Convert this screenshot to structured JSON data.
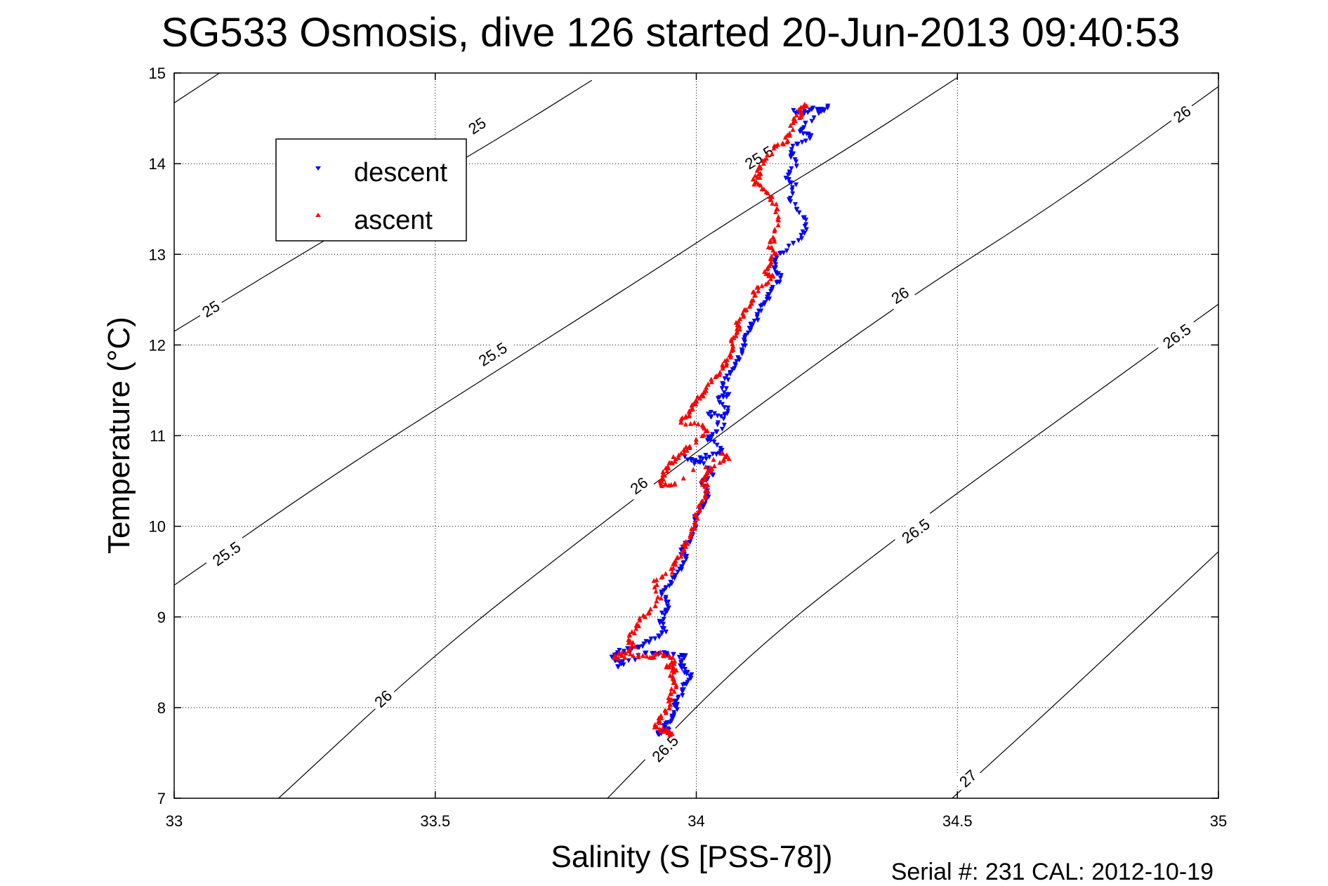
{
  "chart_data": {
    "type": "scatter",
    "title": "SG533 Osmosis, dive 126 started 20-Jun-2013 09:40:53",
    "xlabel": "Salinity (S [PSS-78])",
    "ylabel": "Temperature (°C)",
    "xlim": [
      33,
      35
    ],
    "ylim": [
      7,
      15
    ],
    "x_ticks": [
      "33",
      "33.5",
      "34",
      "34.5",
      "35"
    ],
    "y_ticks": [
      "7",
      "8",
      "9",
      "10",
      "11",
      "12",
      "13",
      "14",
      "15"
    ],
    "grid": true,
    "legend_position": "top-left",
    "footnote": "Serial #: 231  CAL: 2012-10-19",
    "colors": {
      "descent": "#0000ff",
      "ascent": "#ff0000",
      "contour": "#000000"
    },
    "contours": [
      {
        "level": "25",
        "points": [
          [
            33.0,
            14.67
          ],
          [
            33.1,
            15.05
          ]
        ],
        "labels": [
          [
            33.58,
            14.42
          ]
        ]
      },
      {
        "level": "25",
        "points": [
          [
            33.0,
            12.15
          ],
          [
            33.3,
            13.2
          ],
          [
            33.6,
            14.2
          ],
          [
            33.8,
            14.92
          ]
        ],
        "labels": [
          [
            33.07,
            12.4
          ]
        ]
      },
      {
        "level": "25.5",
        "points": [
          [
            33.0,
            9.35
          ],
          [
            33.3,
            10.55
          ],
          [
            33.6,
            11.65
          ],
          [
            33.9,
            12.75
          ],
          [
            34.1,
            13.5
          ],
          [
            34.3,
            14.2
          ],
          [
            34.5,
            14.95
          ]
        ],
        "labels": [
          [
            33.1,
            9.7
          ],
          [
            33.61,
            11.9
          ],
          [
            34.12,
            14.07
          ]
        ]
      },
      {
        "level": "26",
        "points": [
          [
            33.2,
            7.0
          ],
          [
            33.5,
            8.6
          ],
          [
            33.8,
            9.95
          ],
          [
            34.1,
            11.25
          ],
          [
            34.4,
            12.5
          ],
          [
            34.7,
            13.6
          ],
          [
            35.0,
            14.85
          ]
        ],
        "labels": [
          [
            33.4,
            8.1
          ],
          [
            33.89,
            10.45
          ],
          [
            34.39,
            12.55
          ],
          [
            34.93,
            14.55
          ]
        ]
      },
      {
        "level": "26.5",
        "points": [
          [
            33.83,
            7.0
          ],
          [
            34.1,
            8.6
          ],
          [
            34.4,
            9.95
          ],
          [
            34.7,
            11.2
          ],
          [
            35.0,
            12.45
          ]
        ],
        "labels": [
          [
            33.94,
            7.55
          ],
          [
            34.42,
            9.95
          ],
          [
            34.92,
            12.1
          ]
        ]
      },
      {
        "level": "27",
        "points": [
          [
            34.49,
            7.0
          ],
          [
            34.7,
            8.1
          ],
          [
            35.0,
            9.72
          ]
        ],
        "labels": [
          [
            34.52,
            7.22
          ]
        ]
      }
    ],
    "series": [
      {
        "name": "descent",
        "marker": "triangle-down",
        "points": [
          [
            34.19,
            14.57
          ],
          [
            34.2,
            14.55
          ],
          [
            34.22,
            14.6
          ],
          [
            34.24,
            14.58
          ],
          [
            34.25,
            14.62
          ],
          [
            34.21,
            14.45
          ],
          [
            34.2,
            14.35
          ],
          [
            34.22,
            14.3
          ],
          [
            34.19,
            14.2
          ],
          [
            34.18,
            14.1
          ],
          [
            34.19,
            13.98
          ],
          [
            34.17,
            13.85
          ],
          [
            34.19,
            13.75
          ],
          [
            34.18,
            13.6
          ],
          [
            34.2,
            13.45
          ],
          [
            34.21,
            13.3
          ],
          [
            34.2,
            13.18
          ],
          [
            34.17,
            13.05
          ],
          [
            34.15,
            12.95
          ],
          [
            34.15,
            12.85
          ],
          [
            34.16,
            12.75
          ],
          [
            34.15,
            12.65
          ],
          [
            34.14,
            12.55
          ],
          [
            34.13,
            12.45
          ],
          [
            34.12,
            12.35
          ],
          [
            34.11,
            12.25
          ],
          [
            34.1,
            12.15
          ],
          [
            34.09,
            12.05
          ],
          [
            34.09,
            11.95
          ],
          [
            34.08,
            11.85
          ],
          [
            34.07,
            11.75
          ],
          [
            34.06,
            11.65
          ],
          [
            34.05,
            11.55
          ],
          [
            34.06,
            11.45
          ],
          [
            34.04,
            11.4
          ],
          [
            34.06,
            11.3
          ],
          [
            34.05,
            11.2
          ],
          [
            34.02,
            11.25
          ],
          [
            34.05,
            11.1
          ],
          [
            34.03,
            11.0
          ],
          [
            34.02,
            10.95
          ],
          [
            34.05,
            10.85
          ],
          [
            34.04,
            10.8
          ],
          [
            34.01,
            10.75
          ],
          [
            34.0,
            10.7
          ],
          [
            33.98,
            10.75
          ],
          [
            34.02,
            10.65
          ],
          [
            34.03,
            10.55
          ],
          [
            34.01,
            10.48
          ],
          [
            34.02,
            10.4
          ],
          [
            34.02,
            10.3
          ],
          [
            34.01,
            10.2
          ],
          [
            34.0,
            10.1
          ],
          [
            34.0,
            10.0
          ],
          [
            33.99,
            9.9
          ],
          [
            33.98,
            9.8
          ],
          [
            33.97,
            9.72
          ],
          [
            33.98,
            9.65
          ],
          [
            33.97,
            9.55
          ],
          [
            33.96,
            9.45
          ],
          [
            33.95,
            9.35
          ],
          [
            33.93,
            9.25
          ],
          [
            33.95,
            9.15
          ],
          [
            33.94,
            9.05
          ],
          [
            33.93,
            8.95
          ],
          [
            33.94,
            8.85
          ],
          [
            33.92,
            8.75
          ],
          [
            33.9,
            8.7
          ],
          [
            33.88,
            8.65
          ],
          [
            33.85,
            8.62
          ],
          [
            33.84,
            8.55
          ],
          [
            33.86,
            8.5
          ],
          [
            33.85,
            8.45
          ],
          [
            33.9,
            8.58
          ],
          [
            33.93,
            8.6
          ],
          [
            33.96,
            8.58
          ],
          [
            33.98,
            8.55
          ],
          [
            33.97,
            8.48
          ],
          [
            33.98,
            8.4
          ],
          [
            33.99,
            8.35
          ],
          [
            33.98,
            8.25
          ],
          [
            33.97,
            8.15
          ],
          [
            33.96,
            8.05
          ],
          [
            33.96,
            7.95
          ],
          [
            33.95,
            7.85
          ],
          [
            33.94,
            7.8
          ],
          [
            33.95,
            7.75
          ],
          [
            33.93,
            7.72
          ]
        ]
      },
      {
        "name": "ascent",
        "marker": "triangle-up",
        "points": [
          [
            34.21,
            14.65
          ],
          [
            34.2,
            14.62
          ],
          [
            34.2,
            14.55
          ],
          [
            34.19,
            14.5
          ],
          [
            34.18,
            14.35
          ],
          [
            34.17,
            14.25
          ],
          [
            34.15,
            14.18
          ],
          [
            34.13,
            14.05
          ],
          [
            34.12,
            13.95
          ],
          [
            34.12,
            13.88
          ],
          [
            34.11,
            13.82
          ],
          [
            34.12,
            13.75
          ],
          [
            34.14,
            13.65
          ],
          [
            34.15,
            13.55
          ],
          [
            34.16,
            13.4
          ],
          [
            34.15,
            13.2
          ],
          [
            34.14,
            13.1
          ],
          [
            34.15,
            13.0
          ],
          [
            34.14,
            12.9
          ],
          [
            34.13,
            12.78
          ],
          [
            34.15,
            12.75
          ],
          [
            34.12,
            12.65
          ],
          [
            34.11,
            12.55
          ],
          [
            34.1,
            12.45
          ],
          [
            34.09,
            12.35
          ],
          [
            34.08,
            12.25
          ],
          [
            34.08,
            12.15
          ],
          [
            34.07,
            12.05
          ],
          [
            34.07,
            11.95
          ],
          [
            34.06,
            11.85
          ],
          [
            34.05,
            11.75
          ],
          [
            34.04,
            11.65
          ],
          [
            34.02,
            11.55
          ],
          [
            34.01,
            11.45
          ],
          [
            34.0,
            11.38
          ],
          [
            33.99,
            11.3
          ],
          [
            33.98,
            11.2
          ],
          [
            33.97,
            11.15
          ],
          [
            34.01,
            11.12
          ],
          [
            34.02,
            11.05
          ],
          [
            33.99,
            10.88
          ],
          [
            33.98,
            10.85
          ],
          [
            33.96,
            10.75
          ],
          [
            33.95,
            10.68
          ],
          [
            33.94,
            10.6
          ],
          [
            33.93,
            10.5
          ],
          [
            33.94,
            10.45
          ],
          [
            33.96,
            10.48
          ],
          [
            34.05,
            10.8
          ],
          [
            34.06,
            10.75
          ],
          [
            34.03,
            10.65
          ],
          [
            34.02,
            10.58
          ],
          [
            34.01,
            10.5
          ],
          [
            34.02,
            10.45
          ],
          [
            34.02,
            10.35
          ],
          [
            34.01,
            10.25
          ],
          [
            34.0,
            10.12
          ],
          [
            34.0,
            10.02
          ],
          [
            33.99,
            9.92
          ],
          [
            33.98,
            9.8
          ],
          [
            33.97,
            9.7
          ],
          [
            33.96,
            9.62
          ],
          [
            33.95,
            9.5
          ],
          [
            33.92,
            9.4
          ],
          [
            33.93,
            9.2
          ],
          [
            33.91,
            9.05
          ],
          [
            33.89,
            8.95
          ],
          [
            33.88,
            8.85
          ],
          [
            33.87,
            8.75
          ],
          [
            33.88,
            8.68
          ],
          [
            33.86,
            8.6
          ],
          [
            33.84,
            8.55
          ],
          [
            33.88,
            8.58
          ],
          [
            33.91,
            8.55
          ],
          [
            33.93,
            8.6
          ],
          [
            33.95,
            8.55
          ],
          [
            33.96,
            8.48
          ],
          [
            33.94,
            8.45
          ],
          [
            33.96,
            8.42
          ],
          [
            33.95,
            8.35
          ],
          [
            33.96,
            8.25
          ],
          [
            33.95,
            8.15
          ],
          [
            33.95,
            8.05
          ],
          [
            33.94,
            7.95
          ],
          [
            33.93,
            7.85
          ],
          [
            33.92,
            7.78
          ],
          [
            33.94,
            7.75
          ],
          [
            33.95,
            7.72
          ]
        ]
      }
    ]
  }
}
